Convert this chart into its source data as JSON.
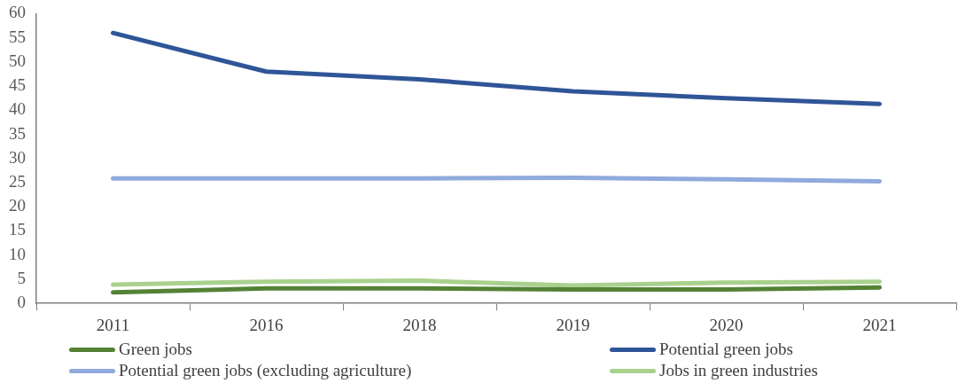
{
  "chart_data": {
    "type": "line",
    "categories": [
      "2011",
      "2016",
      "2018",
      "2019",
      "2020",
      "2021"
    ],
    "series": [
      {
        "name": "Green jobs",
        "color": "#548235",
        "values": [
          2.3,
          3.1,
          3.1,
          2.9,
          2.9,
          3.3
        ]
      },
      {
        "name": "Potential green jobs",
        "color": "#2f5597",
        "values": [
          56,
          48,
          46.4,
          43.9,
          42.5,
          41.3
        ]
      },
      {
        "name": "Potential green jobs (excluding agriculture)",
        "color": "#8faadc",
        "values": [
          25.9,
          25.9,
          25.9,
          26,
          25.7,
          25.3
        ]
      },
      {
        "name": "Jobs in green industries",
        "color": "#a9d18e",
        "values": [
          3.9,
          4.5,
          4.7,
          3.7,
          4.3,
          4.5
        ]
      }
    ],
    "ylim": [
      0,
      60
    ],
    "yticks": [
      0,
      5,
      10,
      15,
      20,
      25,
      30,
      35,
      40,
      45,
      50,
      55,
      60
    ],
    "grid": false,
    "legend": "bottom",
    "marker": "none",
    "line_style": "solid"
  }
}
